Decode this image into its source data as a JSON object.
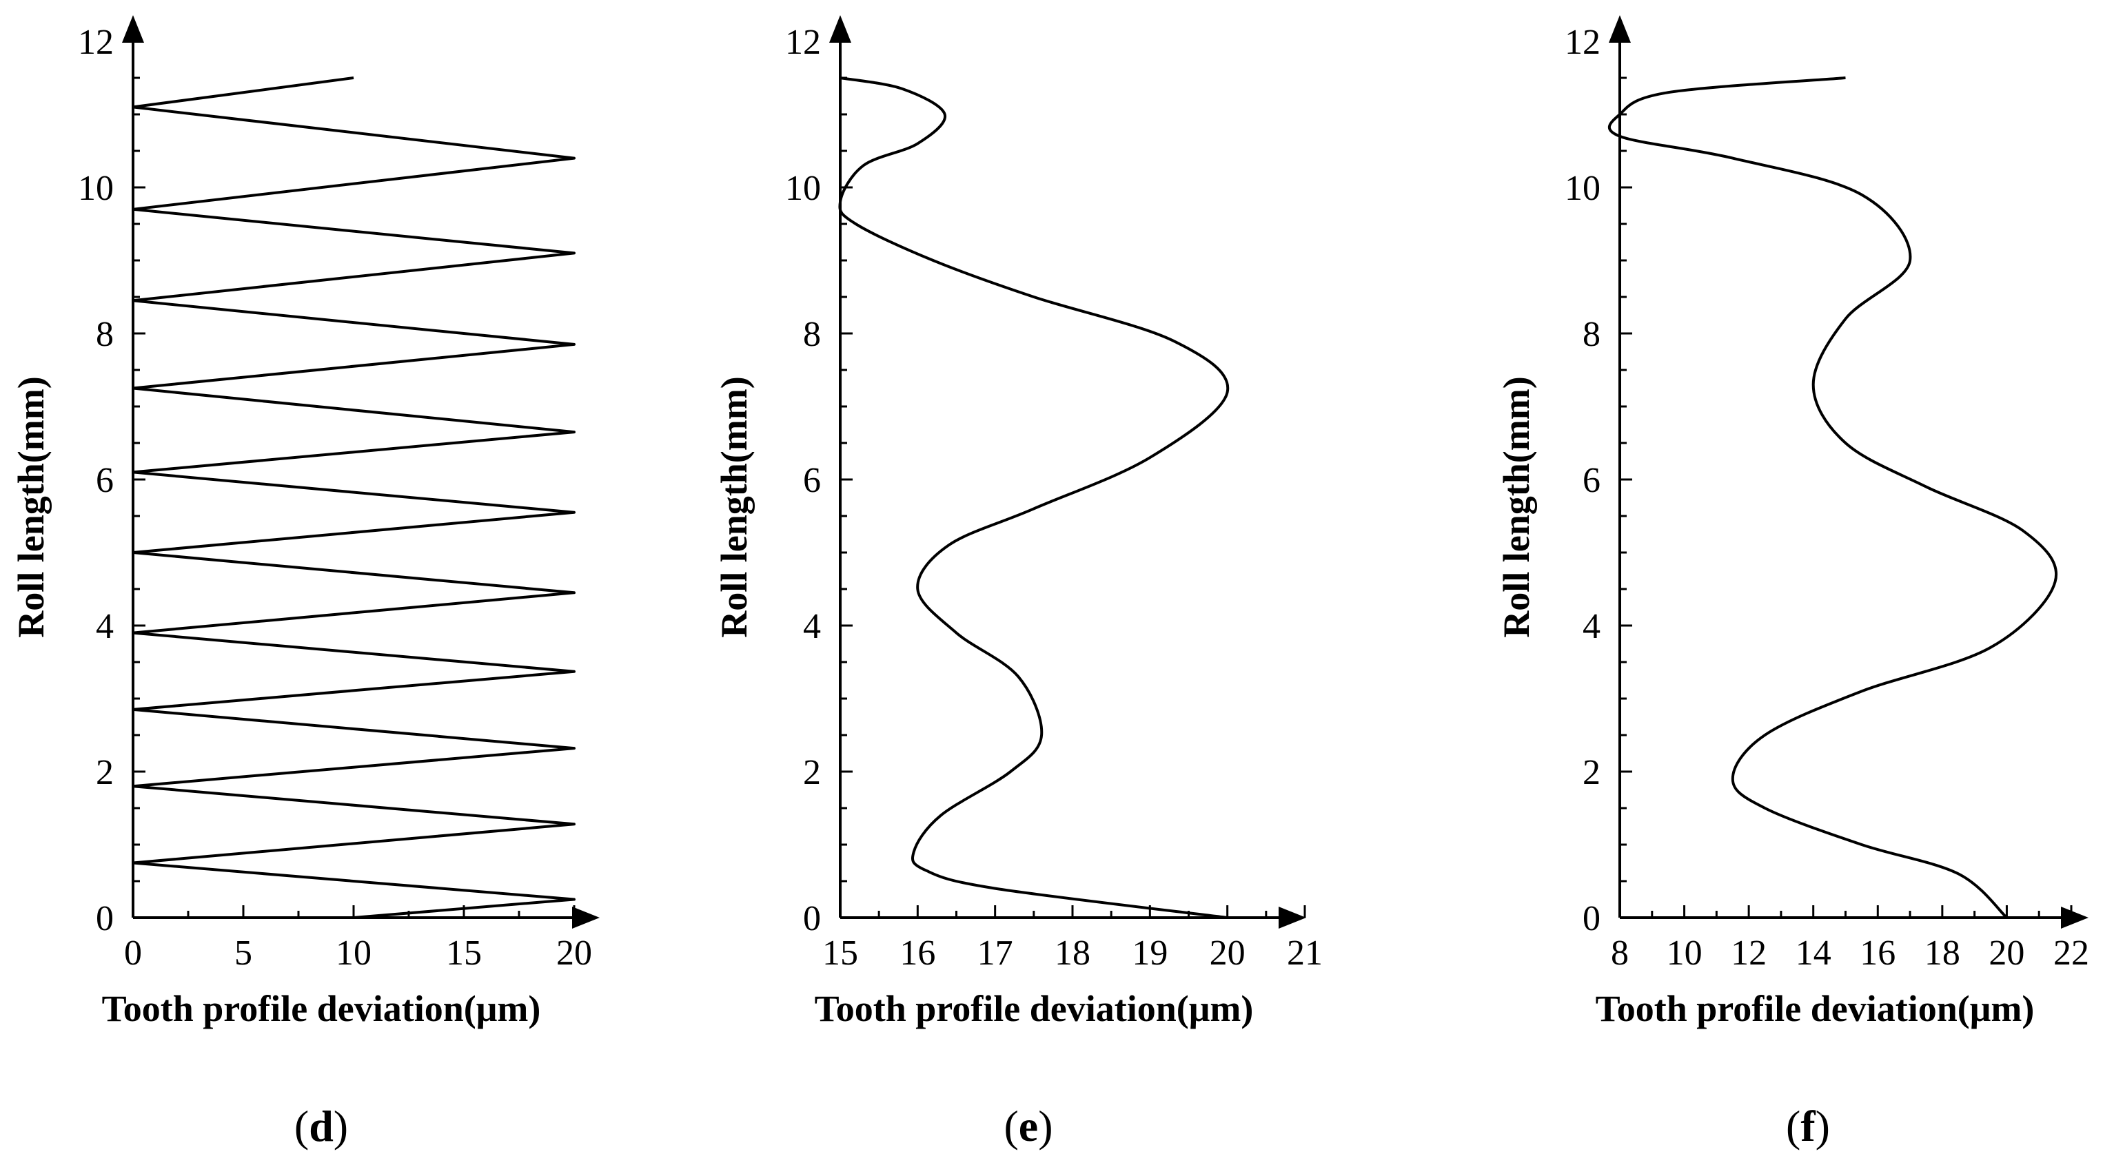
{
  "figure": {
    "line_color": "#000000",
    "background": "#ffffff"
  },
  "chart_data": [
    {
      "panel": "d",
      "type": "line",
      "label_open": "(",
      "label_letter": "d",
      "label_close": ")",
      "xlabel": "Tooth profile deviation(μm)",
      "ylabel": "Roll length(mm)",
      "xlim": [
        0,
        20
      ],
      "ylim": [
        0,
        12
      ],
      "xticks": [
        "0",
        "5",
        "10",
        "15",
        "20"
      ],
      "yticks": [
        "0",
        "2",
        "4",
        "6",
        "8",
        "10",
        "12"
      ],
      "curve": {
        "kind": "zigzag",
        "start": [
          10,
          0
        ],
        "end": [
          10,
          11.5
        ],
        "right_peaks": [
          0.25,
          1.28,
          2.32,
          3.37,
          4.45,
          5.55,
          6.65,
          7.85,
          9.1,
          10.4
        ],
        "left_troughs": [
          0.75,
          1.8,
          2.85,
          3.9,
          5.0,
          6.1,
          7.25,
          8.45,
          9.7,
          11.1
        ],
        "x_min": 0,
        "x_max": 20
      }
    },
    {
      "panel": "e",
      "type": "line",
      "label_open": "(",
      "label_letter": "e",
      "label_close": ")",
      "xlabel": "Tooth profile deviation(μm)",
      "ylabel": "Roll length(mm)",
      "xlim": [
        15,
        21
      ],
      "ylim": [
        0,
        12
      ],
      "xticks": [
        "15",
        "16",
        "17",
        "18",
        "19",
        "20",
        "21"
      ],
      "yticks": [
        "0",
        "2",
        "4",
        "6",
        "8",
        "10",
        "12"
      ],
      "curve": {
        "kind": "smooth",
        "points": [
          [
            20.0,
            0.0
          ],
          [
            17.0,
            0.4
          ],
          [
            16.1,
            0.65
          ],
          [
            15.95,
            0.9
          ],
          [
            16.3,
            1.4
          ],
          [
            17.2,
            2.0
          ],
          [
            17.6,
            2.5
          ],
          [
            17.3,
            3.3
          ],
          [
            16.5,
            3.9
          ],
          [
            16.0,
            4.5
          ],
          [
            16.4,
            5.1
          ],
          [
            17.5,
            5.6
          ],
          [
            19.0,
            6.3
          ],
          [
            20.0,
            7.2
          ],
          [
            19.3,
            7.9
          ],
          [
            17.5,
            8.5
          ],
          [
            16.2,
            9.0
          ],
          [
            15.2,
            9.5
          ],
          [
            15.0,
            9.8
          ],
          [
            15.3,
            10.3
          ],
          [
            16.0,
            10.6
          ],
          [
            16.35,
            11.0
          ],
          [
            15.8,
            11.35
          ],
          [
            15.0,
            11.5
          ]
        ]
      }
    },
    {
      "panel": "f",
      "type": "line",
      "label_open": "(",
      "label_letter": "f",
      "label_close": ")",
      "xlabel": "Tooth profile deviation(μm)",
      "ylabel": "Roll length(mm)",
      "xlim": [
        8,
        22
      ],
      "ylim": [
        0,
        12
      ],
      "xticks": [
        "8",
        "10",
        "12",
        "14",
        "16",
        "18",
        "20",
        "22"
      ],
      "yticks": [
        "0",
        "2",
        "4",
        "6",
        "8",
        "10",
        "12"
      ],
      "curve": {
        "kind": "smooth",
        "points": [
          [
            20.0,
            0.0
          ],
          [
            18.5,
            0.6
          ],
          [
            15.5,
            1.0
          ],
          [
            12.5,
            1.5
          ],
          [
            11.5,
            1.9
          ],
          [
            12.5,
            2.5
          ],
          [
            15.5,
            3.1
          ],
          [
            19.5,
            3.7
          ],
          [
            21.5,
            4.6
          ],
          [
            20.5,
            5.3
          ],
          [
            17.5,
            5.9
          ],
          [
            15.0,
            6.5
          ],
          [
            14.0,
            7.3
          ],
          [
            15.0,
            8.2
          ],
          [
            17.0,
            9.0
          ],
          [
            15.5,
            9.9
          ],
          [
            11.5,
            10.4
          ],
          [
            8.0,
            10.7
          ],
          [
            8.0,
            11.0
          ],
          [
            9.5,
            11.3
          ],
          [
            15.0,
            11.5
          ]
        ]
      }
    }
  ]
}
